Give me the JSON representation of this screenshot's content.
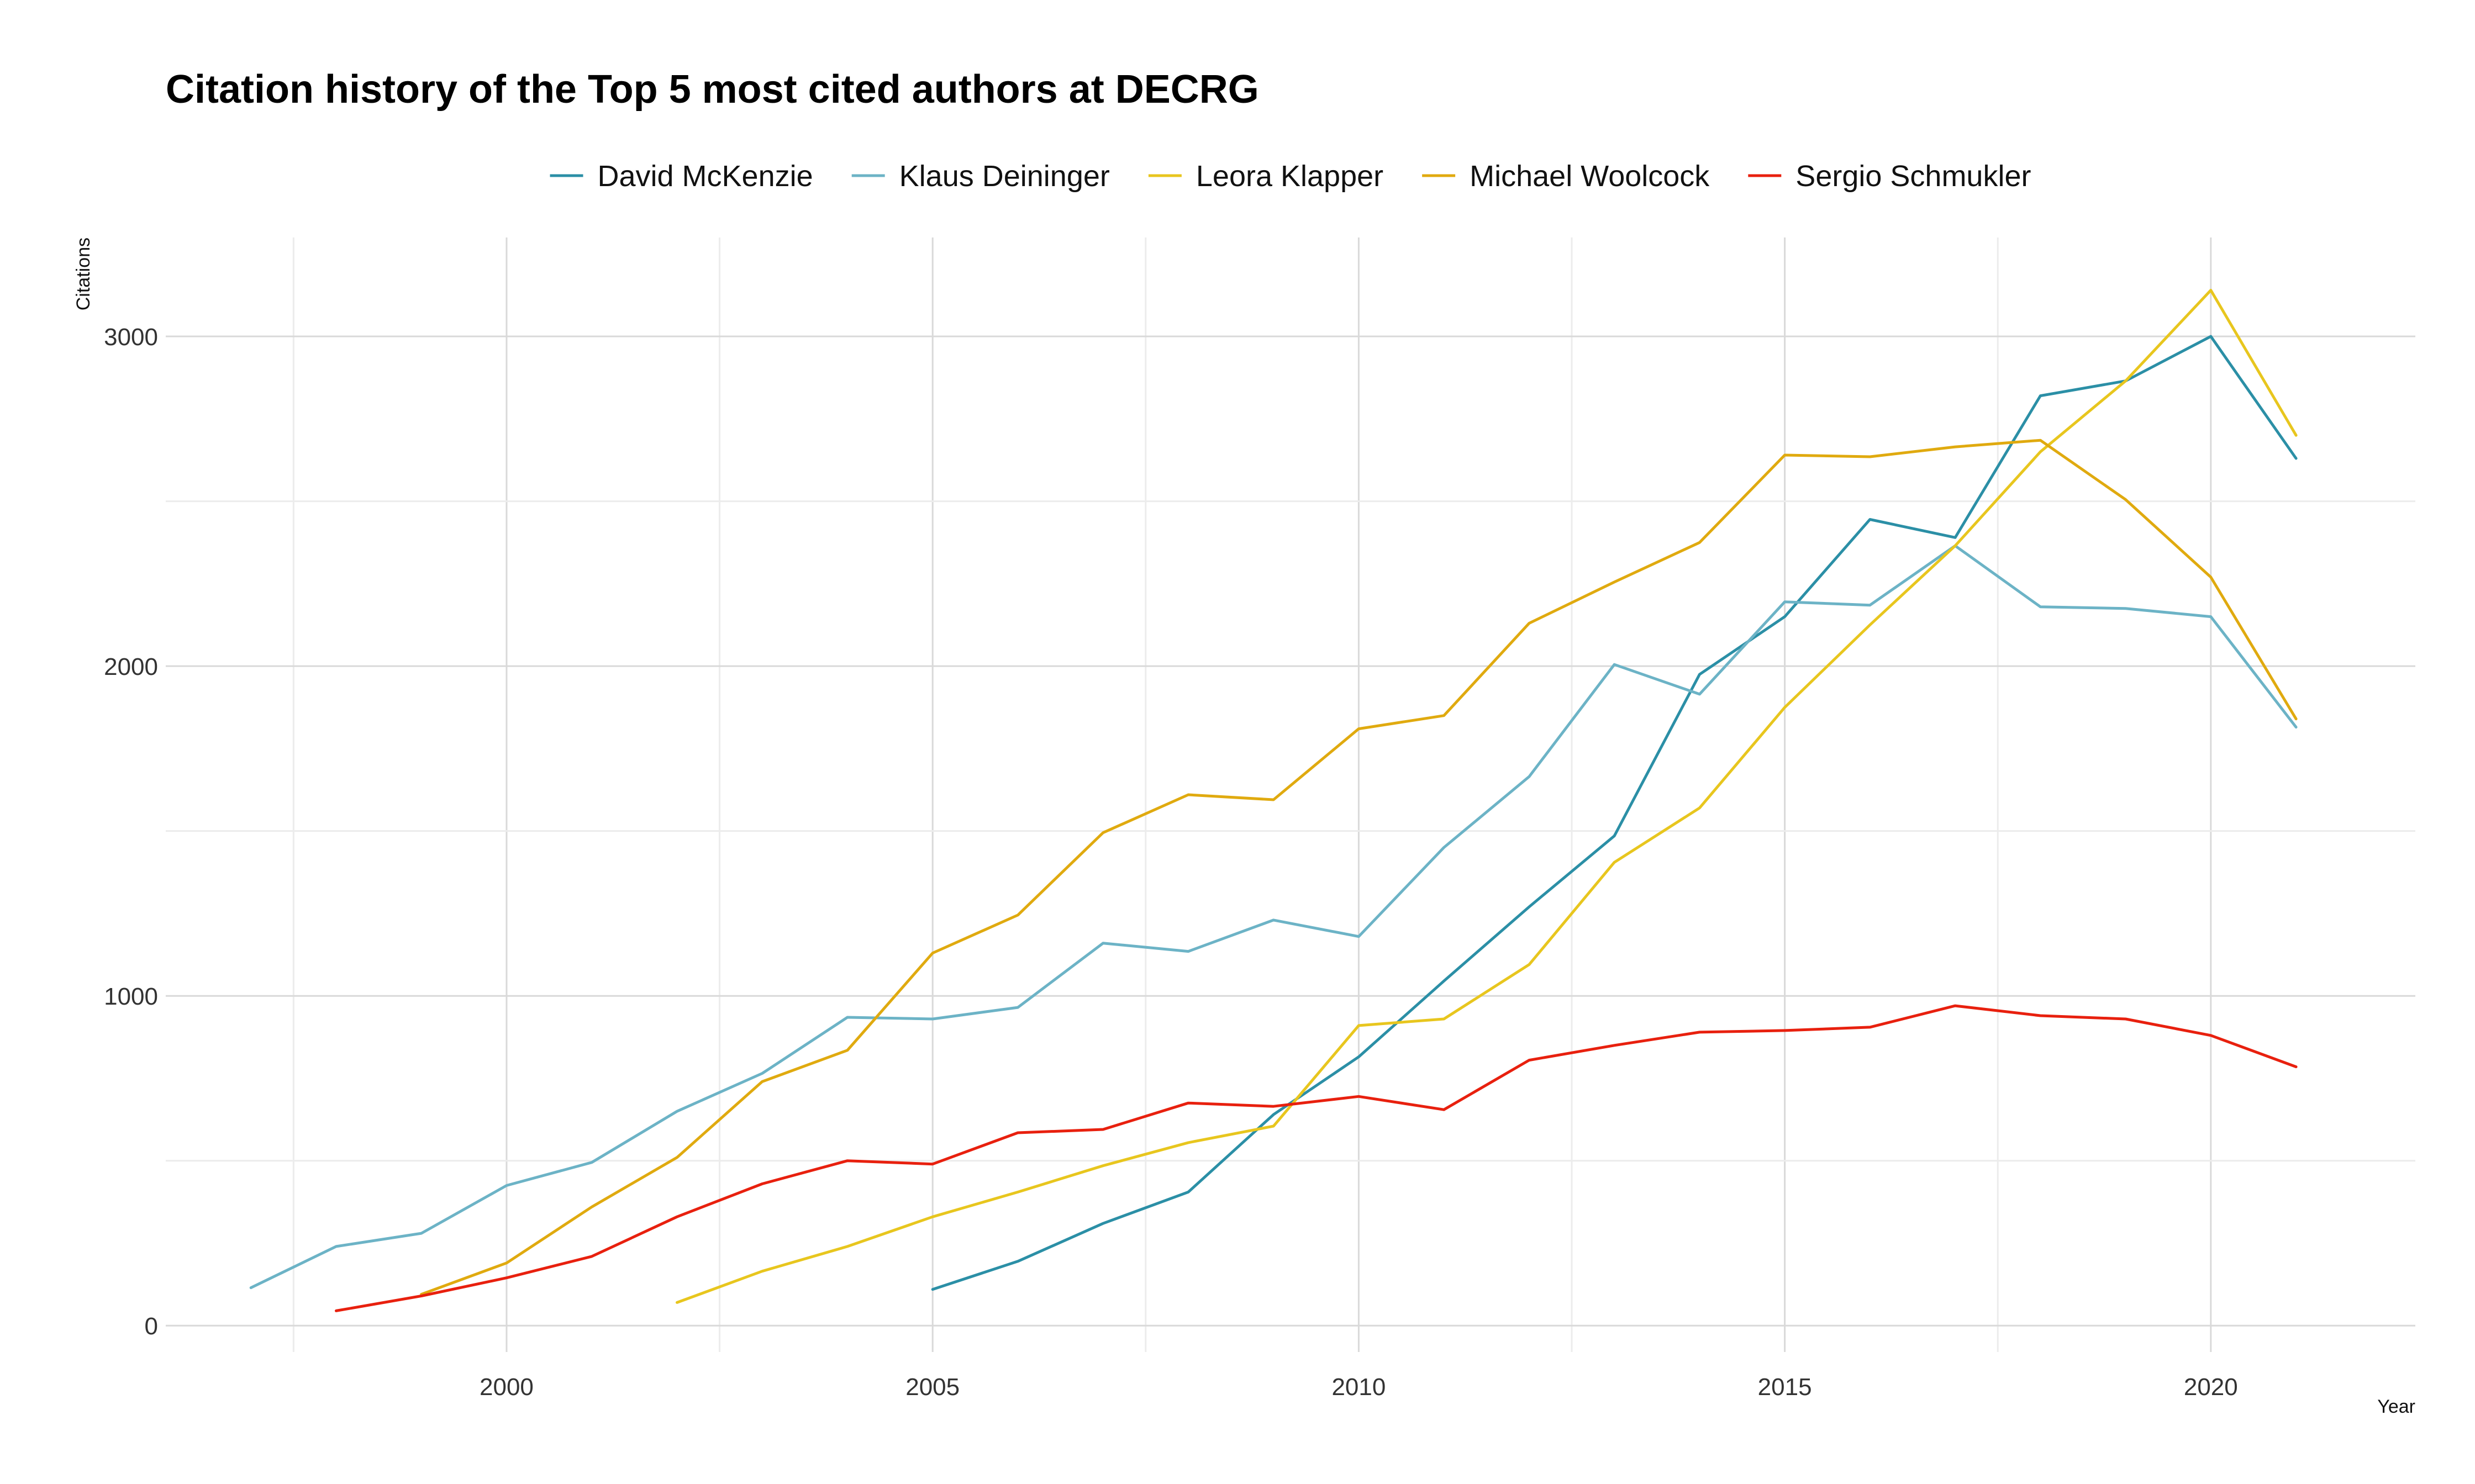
{
  "chart_data": {
    "type": "line",
    "title": "Citation history of the Top 5 most cited authors at DECRG",
    "xlabel": "Year",
    "ylabel": "Citations",
    "xlim": [
      1996,
      2022.4
    ],
    "ylim": [
      -80,
      3300
    ],
    "x_ticks": [
      2000,
      2005,
      2010,
      2015,
      2020
    ],
    "y_ticks": [
      0,
      1000,
      2000,
      3000
    ],
    "x_tick_labels": [
      "2000",
      "2005",
      "2010",
      "2015",
      "2020"
    ],
    "y_tick_labels": [
      "0",
      "1000",
      "2000",
      "3000"
    ],
    "grid": true,
    "legend_position": "top",
    "series": [
      {
        "name": "David McKenzie",
        "color": "#2b8fa6",
        "x": [
          2005,
          2006,
          2007,
          2008,
          2009,
          2010,
          2011,
          2012,
          2013,
          2014,
          2015,
          2016,
          2017,
          2018,
          2019,
          2020,
          2021
        ],
        "values": [
          110,
          195,
          310,
          405,
          640,
          815,
          1045,
          1270,
          1485,
          1975,
          2150,
          2445,
          2390,
          2820,
          2865,
          3000,
          2630
        ]
      },
      {
        "name": "Klaus Deininger",
        "color": "#6cb3c6",
        "x": [
          1997,
          1998,
          1999,
          2000,
          2001,
          2002,
          2003,
          2004,
          2005,
          2006,
          2007,
          2008,
          2009,
          2010,
          2011,
          2012,
          2013,
          2014,
          2015,
          2016,
          2017,
          2018,
          2019,
          2020,
          2021
        ],
        "values": [
          115,
          240,
          280,
          425,
          495,
          650,
          765,
          935,
          930,
          965,
          1160,
          1135,
          1230,
          1180,
          1450,
          1665,
          2005,
          1915,
          2195,
          2185,
          2365,
          2180,
          2175,
          2150,
          1815
        ]
      },
      {
        "name": "Leora Klapper",
        "color": "#e8c61e",
        "x": [
          2002,
          2003,
          2004,
          2005,
          2006,
          2007,
          2008,
          2009,
          2010,
          2011,
          2012,
          2013,
          2014,
          2015,
          2016,
          2017,
          2018,
          2019,
          2020,
          2021
        ],
        "values": [
          70,
          165,
          240,
          330,
          405,
          485,
          555,
          605,
          910,
          930,
          1095,
          1405,
          1570,
          1875,
          2125,
          2365,
          2650,
          2865,
          3140,
          2700
        ]
      },
      {
        "name": "Michael Woolcock",
        "color": "#e0aa0f",
        "x": [
          1999,
          2000,
          2001,
          2002,
          2003,
          2004,
          2005,
          2006,
          2007,
          2008,
          2009,
          2010,
          2011,
          2012,
          2013,
          2014,
          2015,
          2016,
          2017,
          2018,
          2019,
          2020,
          2021
        ],
        "values": [
          95,
          190,
          360,
          510,
          740,
          835,
          1130,
          1245,
          1495,
          1610,
          1595,
          1810,
          1850,
          2130,
          2255,
          2375,
          2640,
          2635,
          2665,
          2685,
          2505,
          2270,
          1840
        ]
      },
      {
        "name": "Sergio Schmukler",
        "color": "#e8200e",
        "x": [
          1998,
          1999,
          2000,
          2001,
          2002,
          2003,
          2004,
          2005,
          2006,
          2007,
          2008,
          2009,
          2010,
          2011,
          2012,
          2013,
          2014,
          2015,
          2016,
          2017,
          2018,
          2019,
          2020,
          2021
        ],
        "values": [
          45,
          90,
          145,
          210,
          330,
          430,
          500,
          490,
          585,
          595,
          675,
          665,
          695,
          655,
          805,
          850,
          890,
          895,
          905,
          970,
          940,
          930,
          880,
          785
        ]
      }
    ]
  }
}
